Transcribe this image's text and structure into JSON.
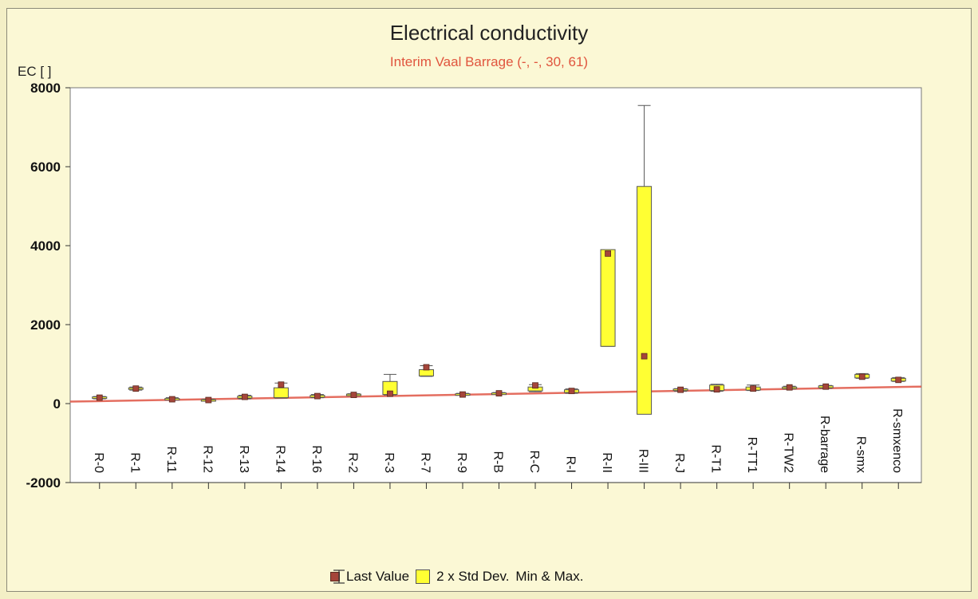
{
  "chart_data": {
    "type": "box",
    "title": "Electrical conductivity",
    "subtitle": "Interim Vaal Barrage (-, -, 30, 61)",
    "ylabel": "EC [ ]",
    "ylim": [
      -2000,
      8000
    ],
    "yticks": [
      -2000,
      0,
      2000,
      4000,
      6000,
      8000
    ],
    "grid": false,
    "legend_position": "bottom",
    "legend": {
      "last_value": "Last Value",
      "std_dev": "2 x Std Dev.",
      "min_max": "Min & Max."
    },
    "reference_line": {
      "x_start": 0,
      "y_start": 50,
      "x_end": 1,
      "y_end": 430
    },
    "categories": [
      "R-0",
      "R-1",
      "R-11",
      "R-12",
      "R-13",
      "R-14",
      "R-16",
      "R-2",
      "R-3",
      "R-7",
      "R-9",
      "R-B",
      "R-C",
      "R-I",
      "R-II",
      "R-III",
      "R-J",
      "R-T1",
      "R-TT1",
      "R-TW2",
      "R-barrage",
      "R-smx",
      "R-smxenco"
    ],
    "series": [
      {
        "name": "Last Value",
        "values": [
          150,
          380,
          110,
          90,
          170,
          480,
          190,
          220,
          250,
          920,
          230,
          260,
          460,
          320,
          3800,
          1200,
          350,
          360,
          380,
          410,
          430,
          680,
          600
        ]
      },
      {
        "name": "2 x Std Dev. low",
        "values": [
          130,
          360,
          100,
          80,
          140,
          150,
          160,
          210,
          230,
          700,
          220,
          250,
          320,
          280,
          1450,
          -270,
          330,
          330,
          340,
          380,
          400,
          650,
          570
        ]
      },
      {
        "name": "2 x Std Dev. high",
        "values": [
          170,
          400,
          130,
          100,
          190,
          400,
          210,
          240,
          560,
          860,
          250,
          270,
          420,
          350,
          3900,
          5500,
          370,
          470,
          420,
          420,
          450,
          740,
          640
        ]
      },
      {
        "name": "Min",
        "values": [
          120,
          340,
          90,
          70,
          120,
          140,
          150,
          200,
          220,
          690,
          210,
          240,
          300,
          260,
          1450,
          520,
          310,
          310,
          330,
          370,
          390,
          640,
          560
        ]
      },
      {
        "name": "Max",
        "values": [
          180,
          420,
          150,
          110,
          210,
          520,
          230,
          250,
          740,
          960,
          260,
          280,
          480,
          370,
          3900,
          7550,
          380,
          490,
          470,
          440,
          460,
          760,
          660
        ]
      }
    ],
    "colors": {
      "last_value": "#a5453a",
      "std_box": "#ffff33",
      "reference": "#e05545",
      "plot_bg": "#ffffff",
      "page_bg": "#fbf8d5"
    }
  }
}
